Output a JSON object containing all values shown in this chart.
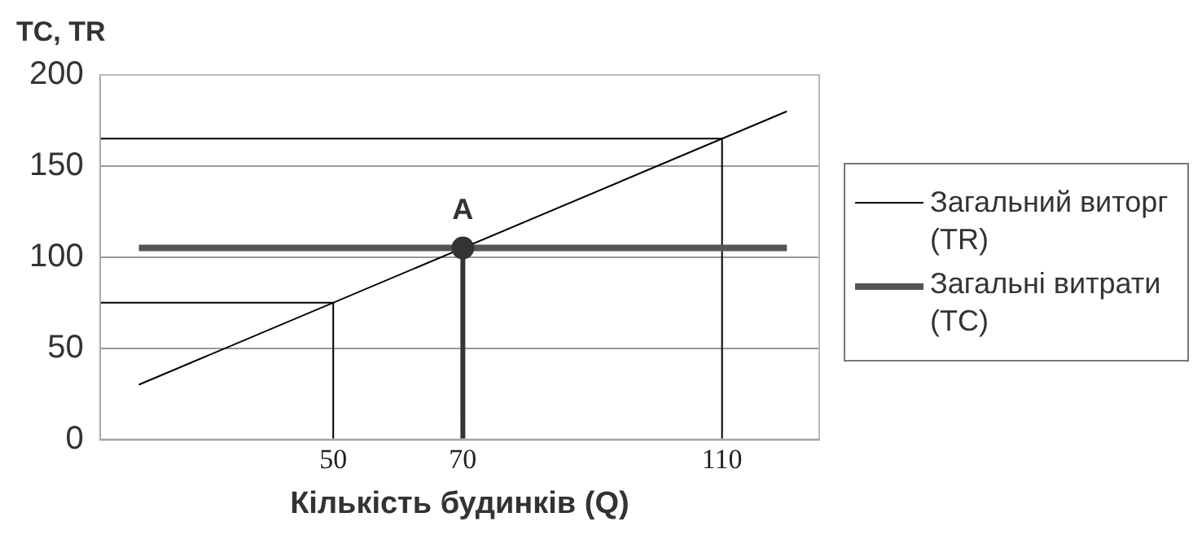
{
  "chart_data": {
    "type": "line",
    "ylabel": "TC, TR",
    "xlabel": "Кількість будинків (Q)",
    "xlim": [
      14,
      125
    ],
    "xticks": [
      50,
      70,
      110
    ],
    "ylim": [
      0,
      200
    ],
    "yticks": [
      0,
      50,
      100,
      150,
      200
    ],
    "grid": "y",
    "legend": "right",
    "marker": "none",
    "series": [
      {
        "name": "Загальний виторг (TR)",
        "color": "#000000",
        "x": [
          20,
          120
        ],
        "values": [
          30,
          180
        ]
      },
      {
        "name": "Загальні витрати (TC)",
        "color": "#555555",
        "x": [
          20,
          120
        ],
        "values": [
          105,
          105
        ]
      },
      {
        "color": "#000000",
        "x": [
          14,
          50,
          50
        ],
        "values": [
          75,
          75,
          0
        ]
      },
      {
        "color": "#333333",
        "x": [
          70,
          70
        ],
        "values": [
          105,
          0
        ]
      },
      {
        "color": "#000000",
        "x": [
          14,
          110,
          110
        ],
        "values": [
          165,
          165,
          0
        ]
      },
      {
        "type": "scatter",
        "marker": "circle",
        "color": "#333333",
        "x": [
          70
        ],
        "values": [
          105
        ]
      }
    ],
    "annotations": [
      {
        "text": "A",
        "x": 70,
        "y": 105
      }
    ]
  }
}
